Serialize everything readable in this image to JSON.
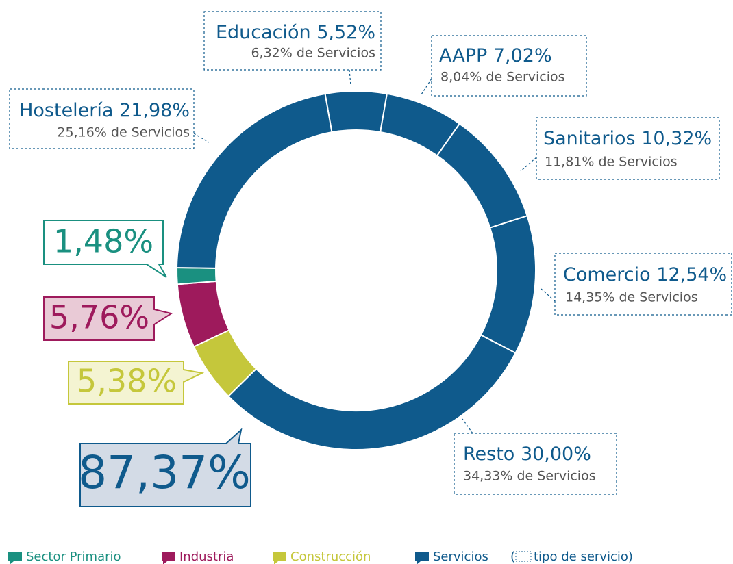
{
  "chart_data": {
    "type": "donut",
    "categories": [
      "Educación",
      "AAPP",
      "Sanitarios",
      "Comercio",
      "Resto",
      "Construcción",
      "Industria",
      "Sector Primario",
      "Hostelería"
    ],
    "values": [
      5.52,
      7.02,
      10.32,
      12.54,
      30.0,
      5.38,
      5.76,
      1.48,
      21.98
    ],
    "value_labels": [
      "5,52%",
      "7,02%",
      "10,32%",
      "12,54%",
      "30,00%",
      null,
      null,
      null,
      "21,98%"
    ],
    "colors": [
      "#0f5a8c",
      "#0f5a8c",
      "#0f5a8c",
      "#0f5a8c",
      "#0f5a8c",
      "#c5c73b",
      "#9e1a5c",
      "#1a9080",
      "#0f5a8c"
    ],
    "share_of_services": [
      6.32,
      8.04,
      11.81,
      14.35,
      34.33,
      null,
      null,
      null,
      25.16
    ],
    "share_labels": [
      "6,32% de Servicios",
      "8,04% de Servicios",
      "11,81% de Servicios",
      "14,35% de Servicios",
      "34,33% de Servicios",
      null,
      null,
      null,
      "25,16% de Servicios"
    ],
    "sectors": [
      {
        "name": "Sector Primario",
        "color": "#1a9080",
        "value": 1.48,
        "value_label": "1,48%"
      },
      {
        "name": "Industria",
        "color": "#9e1a5c",
        "value": 5.76,
        "value_label": "5,76%"
      },
      {
        "name": "Construcción",
        "color": "#c5c73b",
        "value": 5.38,
        "value_label": "5,38%"
      },
      {
        "name": "Servicios",
        "color": "#0f5a8c",
        "value": 87.37,
        "value_label": "87,37%"
      }
    ],
    "legend_note": [
      "(",
      "tipo de servicio)"
    ]
  }
}
